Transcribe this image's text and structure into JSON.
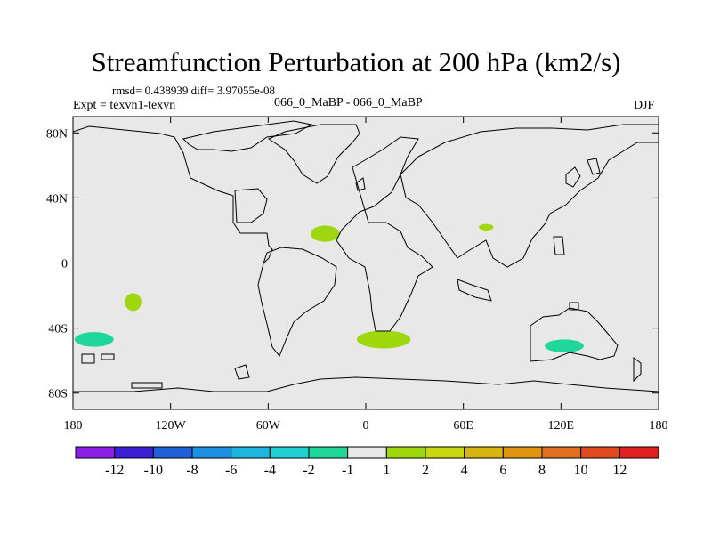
{
  "header": {
    "title": "Streamfunction Perturbation at 200 hPa (km2/s)",
    "stats": "rmsd= 0.438939 diff= 3.97055e-08",
    "expt": "Expt = texvn1-texvn",
    "case": "066_0_MaBP - 066_0_MaBP",
    "season": "DJF"
  },
  "chart_data": {
    "type": "heatmap",
    "title": "Streamfunction Perturbation at 200 hPa (km2/s)",
    "xlim": [
      -180,
      180
    ],
    "ylim": [
      -90,
      90
    ],
    "x_ticks": [
      {
        "value": -180,
        "label": "180"
      },
      {
        "value": -120,
        "label": "120W"
      },
      {
        "value": -60,
        "label": "60W"
      },
      {
        "value": 0,
        "label": "0"
      },
      {
        "value": 60,
        "label": "60E"
      },
      {
        "value": 120,
        "label": "120E"
      },
      {
        "value": 180,
        "label": "180"
      }
    ],
    "y_ticks": [
      {
        "value": 80,
        "label": "80N"
      },
      {
        "value": 40,
        "label": "40N"
      },
      {
        "value": 0,
        "label": "0"
      },
      {
        "value": -40,
        "label": "40S"
      },
      {
        "value": -80,
        "label": "80S"
      }
    ],
    "background_color": "#e8e8e8",
    "anomalies": [
      {
        "lon": -167,
        "lat": -47,
        "dlon": 12,
        "dlat": 4.5,
        "level": "-2..-1",
        "color": "#1fd79a"
      },
      {
        "lon": -143,
        "lat": -24,
        "dlon": 5,
        "dlat": 5.5,
        "level": "1..2",
        "color": "#9fd70f"
      },
      {
        "lon": -25,
        "lat": 18,
        "dlon": 9,
        "dlat": 5,
        "level": "1..2",
        "color": "#9fd70f"
      },
      {
        "lon": 11,
        "lat": -47,
        "dlon": 16.5,
        "dlat": 5.5,
        "level": "1..2",
        "color": "#9fd70f"
      },
      {
        "lon": 74,
        "lat": 22,
        "dlon": 4.5,
        "dlat": 2,
        "level": "1..2",
        "color": "#9fd70f"
      },
      {
        "lon": 122,
        "lat": -51,
        "dlon": 12,
        "dlat": 4,
        "level": "-2..-1",
        "color": "#1fd79a"
      }
    ],
    "colorbar": {
      "colors": [
        "#8a1fe6",
        "#3b1fd7",
        "#1f5fd7",
        "#1f8fe0",
        "#1fb5e0",
        "#1fd1d1",
        "#1fd79a",
        "#e8e8e8",
        "#9fd70f",
        "#c8d70f",
        "#d7b40f",
        "#e0940f",
        "#e0701f",
        "#e04a1f",
        "#e0201f"
      ],
      "labels": [
        "-12",
        "-10",
        "-8",
        "-6",
        "-4",
        "-2",
        "-1",
        "1",
        "2",
        "4",
        "6",
        "8",
        "10",
        "12"
      ]
    }
  }
}
